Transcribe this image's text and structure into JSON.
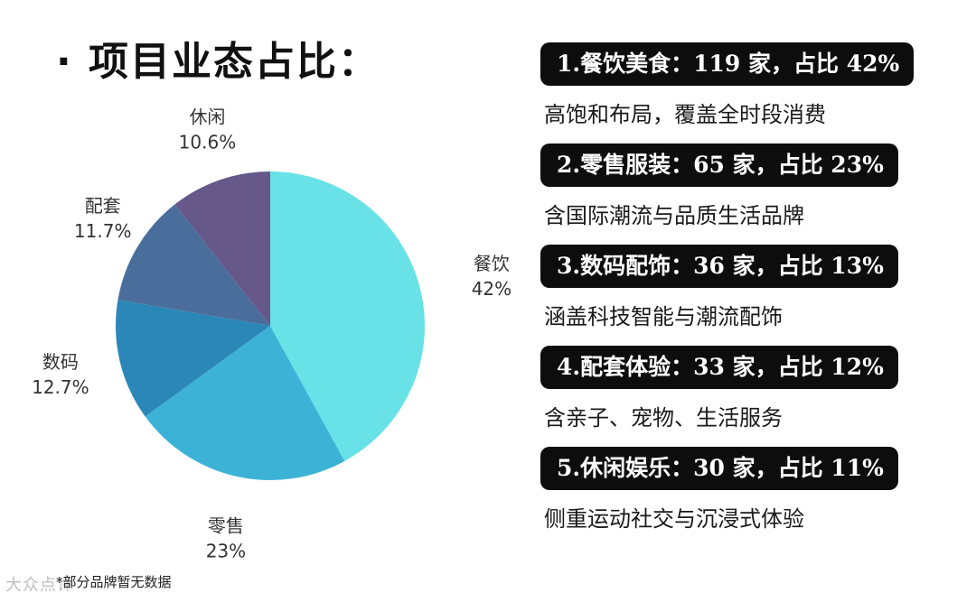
{
  "title": "· 项目业态占比：",
  "note": "*部分品牌暂无数据",
  "watermark": "大众点评",
  "chart_data": {
    "type": "pie",
    "title": "项目业态占比",
    "slices": [
      {
        "label": "餐饮",
        "value": 42,
        "value_label": "42%",
        "color": "#69e2e7"
      },
      {
        "label": "零售",
        "value": 23,
        "value_label": "23%",
        "color": "#3cb3d6"
      },
      {
        "label": "数码",
        "value": 12.7,
        "value_label": "12.7%",
        "color": "#2b87b8"
      },
      {
        "label": "配套",
        "value": 11.7,
        "value_label": "11.7%",
        "color": "#4a6e9c"
      },
      {
        "label": "休闲",
        "value": 10.6,
        "value_label": "10.6%",
        "color": "#665889"
      }
    ],
    "start_angle_deg": 0,
    "direction": "clockwise",
    "legend": "none"
  },
  "cards": [
    {
      "heading": "1.餐饮美食：119 家，占比 42%",
      "desc": "高饱和布局，覆盖全时段消费"
    },
    {
      "heading": "2.零售服装：65 家，占比 23%",
      "desc": "含国际潮流与品质生活品牌"
    },
    {
      "heading": "3.数码配饰：36 家，占比 13%",
      "desc": "涵盖科技智能与潮流配饰"
    },
    {
      "heading": "4.配套体验：33 家，占比 12%",
      "desc": "含亲子、宠物、生活服务"
    },
    {
      "heading": "5.休闲娱乐：30 家，占比 11%",
      "desc": "侧重运动社交与沉浸式体验"
    }
  ]
}
